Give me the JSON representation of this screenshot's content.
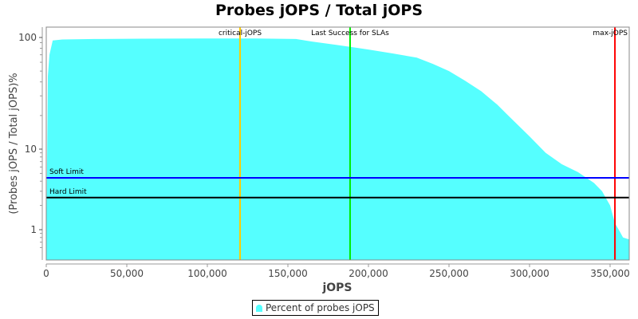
{
  "chart_data": {
    "type": "area",
    "title": "Probes jOPS / Total jOPS",
    "xlabel": "jOPS",
    "ylabel": "(Probes jOPS / Total jOPS)%",
    "xlim": [
      0,
      362500
    ],
    "ylim": [
      0.5,
      130
    ],
    "yscale": "log",
    "x_ticks": [
      "0",
      "50,000",
      "100,000",
      "150,000",
      "200,000",
      "250,000",
      "300,000",
      "350,000"
    ],
    "x_tick_values": [
      0,
      50000,
      100000,
      150000,
      200000,
      250000,
      300000,
      350000
    ],
    "y_ticks": [
      "1",
      "10",
      "100"
    ],
    "y_tick_values": [
      1,
      10,
      100
    ],
    "grid": false,
    "legend_position": "bottom",
    "series": [
      {
        "name": "Percent of probes jOPS",
        "color": "#55ffff",
        "x": [
          0,
          1000,
          2000,
          4000,
          10000,
          30000,
          60000,
          100000,
          130000,
          155000,
          165000,
          180000,
          190000,
          200000,
          215000,
          230000,
          240000,
          250000,
          260000,
          270000,
          280000,
          290000,
          300000,
          310000,
          320000,
          330000,
          340000,
          345000,
          350000,
          353000,
          356000,
          358000,
          362500
        ],
        "values": [
          0.5,
          45,
          70,
          94,
          96,
          97,
          97.5,
          98,
          98,
          97,
          92,
          86,
          82,
          78,
          72,
          66,
          58,
          50,
          41,
          33,
          25,
          18,
          13,
          9,
          6.5,
          5.2,
          3.8,
          3.0,
          2.0,
          1.2,
          0.95,
          0.8,
          0.75
        ]
      }
    ],
    "markers": [
      {
        "label": "critical-jOPS",
        "x": 120300,
        "color": "#ffcc00",
        "orientation": "vertical"
      },
      {
        "label": "Last Success for SLAs",
        "x": 188600,
        "color": "#00ee00",
        "orientation": "vertical"
      },
      {
        "label": "max-jOPS",
        "x": 353000,
        "color": "#ff0000",
        "orientation": "vertical"
      },
      {
        "label": "Soft Limit",
        "y": 4.4,
        "color": "#0000ff",
        "orientation": "horizontal"
      },
      {
        "label": "Hard Limit",
        "y": 2.5,
        "color": "#000000",
        "orientation": "horizontal"
      }
    ]
  },
  "legend": {
    "label": "Percent of probes jOPS"
  }
}
